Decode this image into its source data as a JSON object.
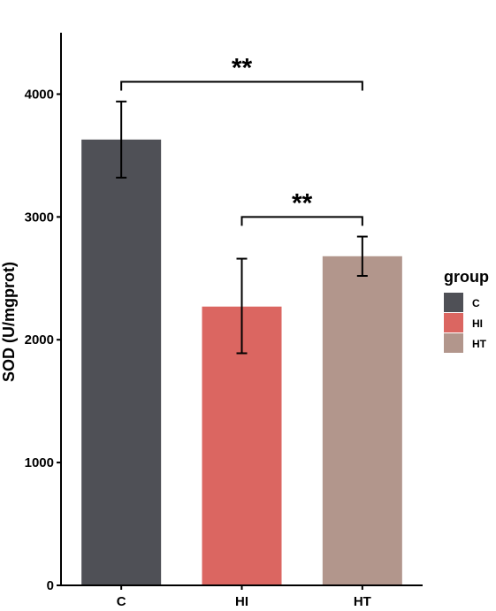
{
  "chart_data": {
    "type": "bar",
    "categories": [
      "C",
      "HI",
      "HT"
    ],
    "values": [
      3630,
      2270,
      2680
    ],
    "errors": [
      {
        "low": 3320,
        "high": 3940
      },
      {
        "low": 1890,
        "high": 2660
      },
      {
        "low": 2520,
        "high": 2840
      }
    ],
    "colors": [
      "#4f5056",
      "#db6661",
      "#b2968c"
    ],
    "ylabel": "SOD (U/mgprot)",
    "xlabel": "",
    "ylim": [
      0,
      4500
    ],
    "yticks": [
      0,
      1000,
      2000,
      3000,
      4000
    ],
    "grid": false,
    "legend": {
      "title": "group",
      "placement": "right",
      "items": [
        "C",
        "HI",
        "HT"
      ]
    },
    "significance": [
      {
        "from": "C",
        "to": "HT",
        "label": "**",
        "y": 4100
      },
      {
        "from": "HI",
        "to": "HT",
        "label": "**",
        "y": 3000
      }
    ]
  }
}
